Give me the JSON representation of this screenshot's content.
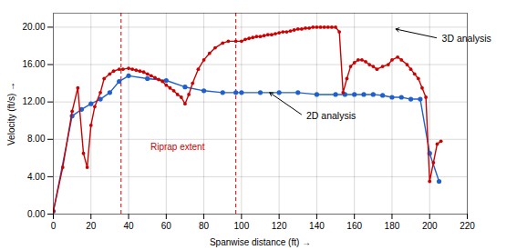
{
  "chart_data": {
    "type": "line",
    "xlabel": "Spanwise distance (ft)",
    "ylabel": "Velocity (ft/s)",
    "xlim": [
      0,
      220
    ],
    "ylim": [
      0,
      21.5
    ],
    "xticks": [
      0,
      20,
      40,
      60,
      80,
      100,
      120,
      140,
      160,
      180,
      200,
      220
    ],
    "yticks": [
      {
        "value": 0.0,
        "label": "0.00"
      },
      {
        "value": 4.0,
        "label": "4.00"
      },
      {
        "value": 8.0,
        "label": "8.00"
      },
      {
        "value": 12.0,
        "label": "12.00"
      },
      {
        "value": 16.0,
        "label": "16.00"
      },
      {
        "value": 20.0,
        "label": "20.00"
      }
    ],
    "grid": true,
    "series": [
      {
        "color": "#2060cc",
        "marker": "circle",
        "x": [
          0,
          10,
          15,
          20,
          25,
          30,
          35,
          40,
          50,
          60,
          70,
          80,
          90,
          97,
          100,
          110,
          120,
          130,
          140,
          150,
          155,
          160,
          165,
          170,
          175,
          180,
          185,
          190,
          195,
          200,
          205
        ],
        "values": [
          0.3,
          10.5,
          11.2,
          11.8,
          12.3,
          13.0,
          14.2,
          14.8,
          14.5,
          14.3,
          13.6,
          13.2,
          13.0,
          13.0,
          13.0,
          13.0,
          13.0,
          13.0,
          12.8,
          12.8,
          12.8,
          12.8,
          12.8,
          12.8,
          12.7,
          12.5,
          12.5,
          12.3,
          12.3,
          6.5,
          3.5
        ]
      },
      {
        "color": "#cc0000",
        "marker": "circle",
        "x": [
          0,
          5,
          10,
          13,
          16,
          18,
          20,
          22,
          25,
          27,
          30,
          32,
          35,
          37,
          40,
          42,
          44,
          46,
          48,
          50,
          52,
          54,
          56,
          58,
          60,
          62,
          64,
          66,
          68,
          70,
          72,
          74,
          77,
          80,
          83,
          86,
          90,
          93,
          97,
          100,
          102,
          104,
          106,
          108,
          110,
          112,
          114,
          116,
          118,
          120,
          122,
          124,
          126,
          128,
          130,
          132,
          134,
          136,
          138,
          140,
          142,
          144,
          146,
          148,
          150,
          152,
          154,
          156,
          158,
          160,
          162,
          164,
          166,
          168,
          170,
          172,
          175,
          178,
          180,
          183,
          185,
          188,
          190,
          192,
          194,
          196,
          198,
          200,
          202,
          204,
          206
        ],
        "values": [
          0.3,
          5.0,
          11.0,
          13.5,
          6.5,
          5.0,
          9.5,
          11.5,
          13.0,
          14.5,
          15.0,
          15.3,
          15.5,
          15.5,
          15.6,
          15.5,
          15.4,
          15.3,
          15.2,
          15.0,
          14.8,
          14.6,
          14.4,
          14.2,
          13.8,
          13.5,
          13.2,
          12.8,
          12.5,
          11.8,
          12.8,
          14.0,
          15.5,
          16.5,
          17.2,
          17.8,
          18.3,
          18.5,
          18.5,
          18.5,
          18.7,
          18.8,
          18.9,
          19.0,
          19.0,
          19.1,
          19.2,
          19.2,
          19.3,
          19.4,
          19.5,
          19.5,
          19.6,
          19.7,
          19.8,
          19.8,
          19.9,
          19.9,
          20.0,
          20.0,
          20.0,
          20.0,
          20.0,
          20.0,
          20.0,
          19.5,
          13.0,
          14.5,
          15.8,
          16.2,
          16.5,
          16.5,
          16.3,
          16.0,
          15.8,
          15.5,
          15.8,
          16.0,
          16.5,
          16.8,
          16.5,
          16.0,
          15.5,
          15.0,
          14.5,
          13.5,
          12.5,
          3.5,
          5.5,
          7.5,
          7.8
        ]
      }
    ],
    "vlines": [
      {
        "x": 36,
        "color": "#cc0000",
        "line_style": "dashed"
      },
      {
        "x": 97,
        "color": "#cc0000",
        "line_style": "dashed"
      }
    ],
    "annotations": [
      {
        "text": "Riprap extent",
        "x": 66,
        "y": 7.2,
        "color": "#cc0000"
      },
      {
        "text": "3D analysis",
        "xy": [
          182,
          19.8
        ],
        "xytext": [
          205,
          18.8
        ]
      },
      {
        "text": "2D analysis",
        "xy": [
          115,
          13.0
        ],
        "xytext": [
          133,
          10.5
        ]
      }
    ]
  }
}
